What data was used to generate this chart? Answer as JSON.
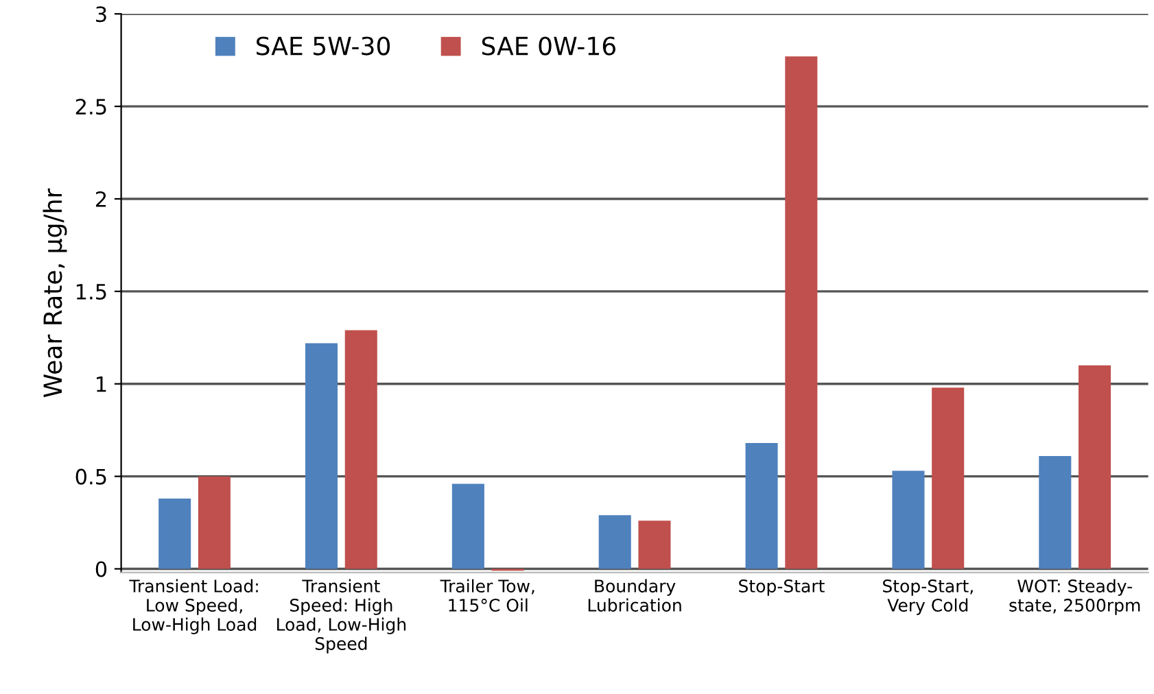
{
  "chart_data": {
    "type": "bar",
    "ylabel": "Wear Rate, µg/hr",
    "categories": [
      "Transient Load:\nLow Speed,\nLow-High Load",
      "Transient\nSpeed: High\nLoad, Low-High\nSpeed",
      "Trailer Tow,\n115°C Oil",
      "Boundary\nLubrication",
      "Stop-Start",
      "Stop-Start,\nVery Cold",
      "WOT: Steady-\nstate, 2500rpm"
    ],
    "series": [
      {
        "name": "SAE 5W-30",
        "color": "#4f81bd",
        "values": [
          0.38,
          1.22,
          0.46,
          0.29,
          0.68,
          0.53,
          0.61
        ]
      },
      {
        "name": "SAE 0W-16",
        "color": "#c0504d",
        "values": [
          0.5,
          1.29,
          -0.01,
          0.26,
          2.77,
          0.98,
          1.1
        ]
      }
    ],
    "ylim": [
      -0.02,
      3
    ],
    "yticks": [
      0,
      0.5,
      1,
      1.5,
      2,
      2.5,
      3
    ],
    "grid": "y",
    "legend": "top left"
  }
}
